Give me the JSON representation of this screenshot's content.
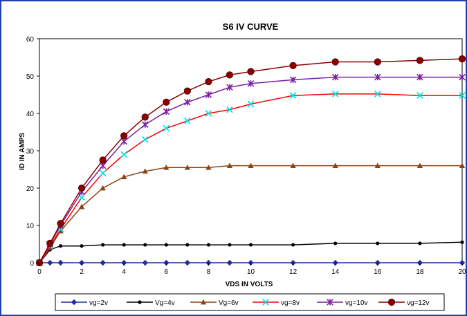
{
  "chart_data": {
    "type": "line",
    "title": "S6 IV CURVE",
    "xlabel": "VDS IN VOLTS",
    "ylabel": "ID IN AMPS",
    "xlim": [
      0,
      20
    ],
    "ylim": [
      0,
      60
    ],
    "xticks": [
      0,
      2,
      4,
      6,
      8,
      10,
      12,
      14,
      16,
      18,
      20
    ],
    "yticks": [
      0,
      10,
      20,
      30,
      40,
      50,
      60
    ],
    "grid": "vertical lines at every 1V, horizontal lines every 10A",
    "legend_position": "bottom",
    "series": [
      {
        "name": "vg=2v",
        "color": "#1f2f9e",
        "marker": "diamond",
        "x": [
          0,
          0.5,
          1,
          2,
          3,
          4,
          5,
          6,
          7,
          8,
          9,
          10,
          12,
          14,
          16,
          18,
          20
        ],
        "y": [
          0,
          0,
          0,
          0,
          0,
          0,
          0,
          0,
          0,
          0,
          0,
          0,
          0,
          0,
          0,
          0,
          0
        ]
      },
      {
        "name": "Vg=4v",
        "color": "#000000",
        "marker": "circle-small",
        "x": [
          0,
          0.5,
          1,
          2,
          3,
          4,
          5,
          6,
          7,
          8,
          9,
          10,
          12,
          14,
          16,
          18,
          20
        ],
        "y": [
          0,
          3.5,
          4.5,
          4.5,
          4.8,
          4.8,
          4.8,
          4.8,
          4.8,
          4.8,
          4.8,
          4.8,
          4.8,
          5.2,
          5.2,
          5.2,
          5.5
        ]
      },
      {
        "name": "Vg=6v",
        "color": "#8b4513",
        "marker": "triangle",
        "x": [
          0,
          0.5,
          1,
          2,
          3,
          4,
          5,
          6,
          7,
          8,
          9,
          10,
          12,
          14,
          16,
          18,
          20
        ],
        "y": [
          0,
          4,
          8.5,
          15,
          20,
          23,
          24.5,
          25.5,
          25.5,
          25.5,
          26,
          26,
          26,
          26,
          26,
          26,
          26
        ]
      },
      {
        "name": "vg=8v",
        "color": "#00e5ee",
        "marker": "x",
        "line_color": "#ff0000",
        "x": [
          0,
          0.5,
          1,
          2,
          3,
          4,
          5,
          6,
          7,
          8,
          9,
          10,
          12,
          14,
          16,
          18,
          20
        ],
        "y": [
          0,
          4.5,
          9,
          17.5,
          24,
          29,
          33,
          36,
          38,
          40,
          41,
          42.5,
          44.8,
          45.2,
          45.2,
          44.8,
          44.8
        ]
      },
      {
        "name": "vg=10v",
        "color": "#7b1fa2",
        "marker": "star",
        "x": [
          0,
          0.5,
          1,
          2,
          3,
          4,
          5,
          6,
          7,
          8,
          9,
          10,
          12,
          14,
          16,
          18,
          20
        ],
        "y": [
          0,
          5,
          10,
          19,
          26,
          32.5,
          37,
          40.5,
          43,
          45,
          47,
          48,
          49,
          49.7,
          49.7,
          49.7,
          49.7
        ]
      },
      {
        "name": "vg=12v",
        "color": "#8b0000",
        "marker": "circle",
        "x": [
          0,
          0.5,
          1,
          2,
          3,
          4,
          5,
          6,
          7,
          8,
          9,
          10,
          12,
          14,
          16,
          18,
          20
        ],
        "y": [
          0,
          5.2,
          10.5,
          20,
          27.5,
          34,
          39,
          43,
          46,
          48.5,
          50.3,
          51.2,
          52.8,
          53.8,
          53.8,
          54.2,
          54.6
        ]
      }
    ]
  }
}
